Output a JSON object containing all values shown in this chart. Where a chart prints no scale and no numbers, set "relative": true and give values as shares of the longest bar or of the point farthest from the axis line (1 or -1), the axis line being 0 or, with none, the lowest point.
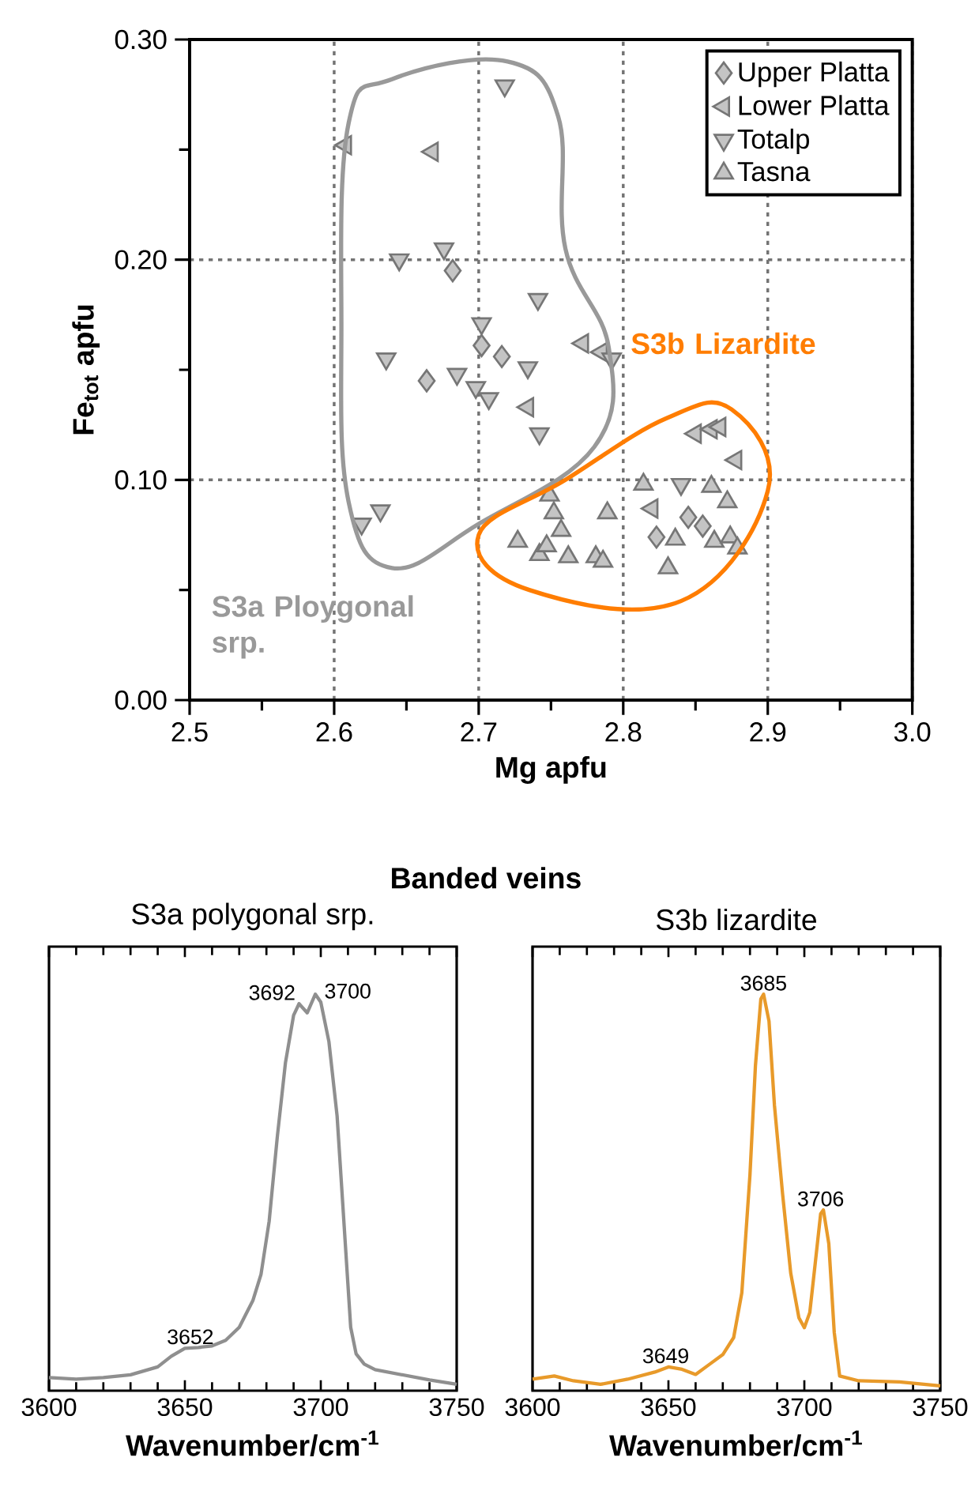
{
  "chart_data": [
    {
      "type": "scatter",
      "xlabel": "Mg apfu",
      "ylabel": "Fe$_{tot}$ apfu",
      "xlim": [
        2.5,
        3.0
      ],
      "ylim": [
        0.0,
        0.3
      ],
      "xticks": [
        2.5,
        2.6,
        2.7,
        2.8,
        2.9,
        {
          "value": 3,
          "label": "3.0"
        }
      ],
      "yticks": [
        {
          "value": 0,
          "label": "0.00"
        },
        {
          "value": 0.1,
          "label": "0.10"
        },
        {
          "value": 0.2,
          "label": "0.20"
        },
        {
          "value": 0.3,
          "label": "0.30"
        }
      ],
      "grid": true,
      "legend": "top right",
      "series": [
        {
          "name": "Upper Platta",
          "color": "#c4c4c4",
          "marker": "diamond",
          "x": [
            2.682,
            2.702,
            2.716,
            2.664,
            2.845,
            2.855,
            2.823
          ],
          "values": [
            0.195,
            0.161,
            0.156,
            0.145,
            0.083,
            0.079,
            0.074
          ]
        },
        {
          "name": "Lower Platta",
          "color": "#c4c4c4",
          "marker": "triangle-left",
          "x": [
            2.608,
            2.668,
            2.734,
            2.772,
            2.785,
            2.85,
            2.861,
            2.867,
            2.878,
            2.82
          ],
          "values": [
            0.252,
            0.249,
            0.133,
            0.162,
            0.158,
            0.121,
            0.123,
            0.124,
            0.109,
            0.087
          ]
        },
        {
          "name": "Totalp",
          "color": "#c4c4c4",
          "marker": "triangle-down",
          "x": [
            2.718,
            2.645,
            2.676,
            2.741,
            2.702,
            2.636,
            2.685,
            2.698,
            2.707,
            2.734,
            2.742,
            2.632,
            2.619,
            2.792,
            2.84
          ],
          "values": [
            0.279,
            0.2,
            0.205,
            0.182,
            0.171,
            0.155,
            0.148,
            0.142,
            0.137,
            0.151,
            0.121,
            0.086,
            0.08,
            0.155,
            0.098
          ]
        },
        {
          "name": "Tasna",
          "color": "#c4c4c4",
          "marker": "triangle",
          "x": [
            2.749,
            2.752,
            2.727,
            2.742,
            2.757,
            2.814,
            2.861,
            2.872,
            2.789,
            2.836,
            2.831,
            2.863,
            2.874,
            2.879,
            2.781,
            2.786,
            2.762,
            2.747
          ],
          "values": [
            0.093,
            0.085,
            0.072,
            0.066,
            0.077,
            0.098,
            0.097,
            0.09,
            0.085,
            0.073,
            0.06,
            0.072,
            0.074,
            0.069,
            0.065,
            0.063,
            0.065,
            0.07
          ]
        }
      ],
      "annotations": [
        "S3a Ploygonal srp.",
        "S3b Lizardite"
      ]
    },
    {
      "type": "line",
      "title": "Banded veins",
      "subtitle": "S3a polygonal srp.",
      "xlabel": "Wavenumber/cm$^{-1}$",
      "xlim": [
        3600,
        3750
      ],
      "xticks": [
        3600,
        3650,
        3700,
        3750
      ],
      "relative": true,
      "tick_labels": "x",
      "color": "#8f8f8f",
      "x": [
        3600,
        3610,
        3620,
        3630,
        3640,
        3645,
        3650,
        3655,
        3660,
        3665,
        3670,
        3675,
        3678,
        3681,
        3684,
        3687,
        3690,
        3692,
        3695,
        3698,
        3700,
        3703,
        3706,
        3709,
        3711,
        3713,
        3716,
        3720,
        3730,
        3740,
        3750
      ],
      "values": [
        0.033,
        0.029,
        0.033,
        0.04,
        0.06,
        0.087,
        0.107,
        0.109,
        0.113,
        0.127,
        0.16,
        0.227,
        0.293,
        0.427,
        0.64,
        0.827,
        0.947,
        0.976,
        0.953,
        1.0,
        0.98,
        0.88,
        0.693,
        0.373,
        0.16,
        0.093,
        0.067,
        0.053,
        0.04,
        0.027,
        0.016
      ],
      "annotations": [
        {
          "text": "3652",
          "x": 3652,
          "y": 0.108
        },
        {
          "text": "3692",
          "x": 3692,
          "y": 0.976
        },
        {
          "text": "3700",
          "x": 3700,
          "y": 0.98
        }
      ]
    },
    {
      "type": "line",
      "subtitle": "S3b lizardite",
      "xlabel": "Wavenumber/cm$^{-1}$",
      "xlim": [
        3600,
        3750
      ],
      "xticks": [
        3600,
        3650,
        3700,
        3750
      ],
      "relative": true,
      "tick_labels": "x",
      "color": "#e89a2a",
      "x": [
        3600,
        3608,
        3615,
        3625,
        3635,
        3645,
        3650,
        3655,
        3660,
        3665,
        3670,
        3674,
        3677,
        3680,
        3682,
        3684,
        3685,
        3687,
        3689,
        3692,
        3695,
        3698,
        3700,
        3702,
        3704,
        3706,
        3707,
        3709,
        3711,
        3713,
        3720,
        3735,
        3750
      ],
      "values": [
        0.029,
        0.037,
        0.025,
        0.016,
        0.029,
        0.047,
        0.06,
        0.054,
        0.041,
        0.066,
        0.091,
        0.134,
        0.247,
        0.545,
        0.819,
        0.988,
        1.0,
        0.932,
        0.72,
        0.496,
        0.296,
        0.184,
        0.159,
        0.197,
        0.321,
        0.446,
        0.456,
        0.371,
        0.147,
        0.037,
        0.025,
        0.022,
        0.012
      ],
      "annotations": [
        {
          "text": "3649",
          "x": 3649,
          "y": 0.06
        },
        {
          "text": "3685",
          "x": 3685,
          "y": 1.0
        },
        {
          "text": "3706",
          "x": 3706,
          "y": 0.456
        }
      ]
    }
  ]
}
